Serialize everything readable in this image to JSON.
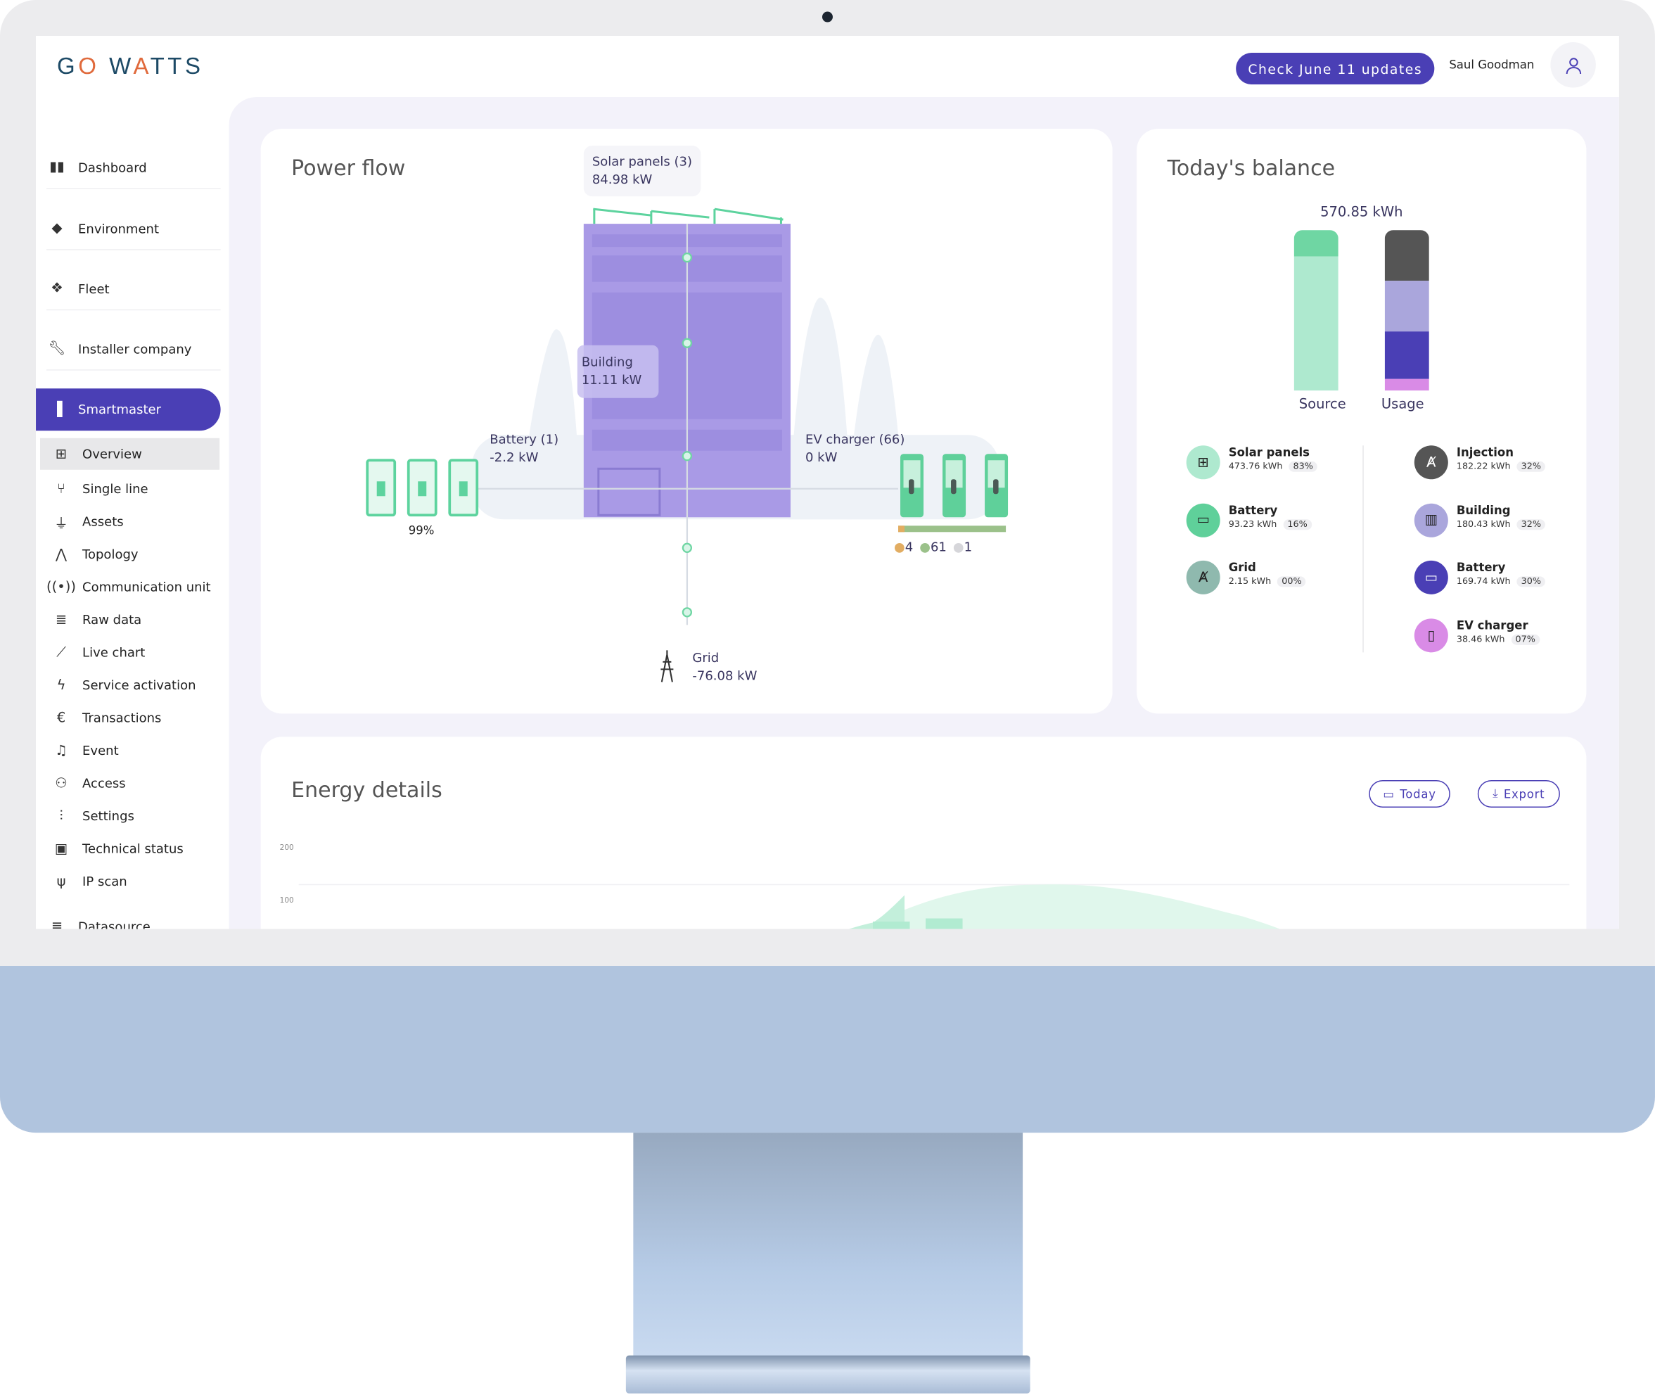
{
  "header": {
    "logo_text": "GO WATTS",
    "update_button": "Check June 11 updates",
    "user_name": "Saul Goodman"
  },
  "sidebar": {
    "items": [
      {
        "label": "Dashboard",
        "icon": "dashboard-icon"
      },
      {
        "label": "Environment",
        "icon": "diamond-icon"
      },
      {
        "label": "Fleet",
        "icon": "fleet-icon"
      },
      {
        "label": "Installer company",
        "icon": "wrench-icon"
      },
      {
        "label": "Smartmaster",
        "icon": "bar-chart-icon",
        "active": true
      }
    ],
    "subitems": [
      {
        "label": "Overview",
        "icon": "grid-icon",
        "active": true
      },
      {
        "label": "Single line",
        "icon": "single-line-icon"
      },
      {
        "label": "Assets",
        "icon": "plug-icon"
      },
      {
        "label": "Topology",
        "icon": "topology-icon"
      },
      {
        "label": "Communication unit",
        "icon": "broadcast-icon"
      },
      {
        "label": "Raw data",
        "icon": "database-icon"
      },
      {
        "label": "Live chart",
        "icon": "line-chart-icon"
      },
      {
        "label": "Service activation",
        "icon": "bolt-icon"
      },
      {
        "label": "Transactions",
        "icon": "euro-icon"
      },
      {
        "label": "Event",
        "icon": "bell-icon"
      },
      {
        "label": "Access",
        "icon": "users-icon"
      },
      {
        "label": "Settings",
        "icon": "sliders-icon"
      },
      {
        "label": "Technical status",
        "icon": "chip-icon"
      },
      {
        "label": "IP scan",
        "icon": "antenna-icon"
      }
    ],
    "bottom_item": {
      "label": "Datasource",
      "icon": "database-icon"
    }
  },
  "power_flow": {
    "title": "Power flow",
    "solar": {
      "label": "Solar panels (3)",
      "value": "84.98 kW"
    },
    "building": {
      "label": "Building",
      "value": "11.11 kW"
    },
    "battery": {
      "label": "Battery (1)",
      "value": "-2.2 kW",
      "soc": "99%"
    },
    "ev": {
      "label": "EV charger (66)",
      "value": "0 kW",
      "status_counts": [
        {
          "count": "4",
          "color": "#e2ad62"
        },
        {
          "count": "61",
          "color": "#9bc18a"
        },
        {
          "count": "1",
          "color": "#d6d6da"
        }
      ]
    },
    "grid": {
      "label": "Grid",
      "value": "-76.08 kW"
    }
  },
  "balance": {
    "title": "Today's balance",
    "total": "570.85 kWh",
    "source_label": "Source",
    "usage_label": "Usage",
    "source_segments": [
      {
        "name": "Solar panels",
        "percent": 83,
        "color": "#aee9cf"
      },
      {
        "name": "Battery",
        "percent": 16,
        "color": "#6fd6a3"
      }
    ],
    "usage_segments": [
      {
        "name": "Injection",
        "percent": 32,
        "color": "#555555"
      },
      {
        "name": "Building",
        "percent": 32,
        "color": "#aaa6dc"
      },
      {
        "name": "Battery",
        "percent": 30,
        "color": "#4a3fb5"
      },
      {
        "name": "EV charger",
        "percent": 7,
        "color": "#d98be6"
      }
    ],
    "source_items": [
      {
        "name": "Solar panels",
        "value": "473.76 kWh",
        "pct": "83%",
        "color": "#aee9cf",
        "icon": "solar-panel-icon"
      },
      {
        "name": "Battery",
        "value": "93.23 kWh",
        "pct": "16%",
        "color": "#5fd09a",
        "icon": "battery-icon"
      },
      {
        "name": "Grid",
        "value": "2.15 kWh",
        "pct": "00%",
        "color": "#8fb9ae",
        "icon": "grid-tower-icon"
      }
    ],
    "usage_items": [
      {
        "name": "Injection",
        "value": "182.22 kWh",
        "pct": "32%",
        "color": "#555555",
        "icon": "injection-tower-icon"
      },
      {
        "name": "Building",
        "value": "180.43 kWh",
        "pct": "32%",
        "color": "#aaa6dc",
        "icon": "factory-icon"
      },
      {
        "name": "Battery",
        "value": "169.74 kWh",
        "pct": "30%",
        "color": "#4a3fb5",
        "icon": "battery-icon"
      },
      {
        "name": "EV charger",
        "value": "38.46 kWh",
        "pct": "07%",
        "color": "#d98be6",
        "icon": "ev-charger-icon"
      }
    ]
  },
  "energy": {
    "title": "Energy details",
    "today_button": "Today",
    "export_button": "Export",
    "y_ticks": [
      "200",
      "100"
    ]
  },
  "colors": {
    "accent": "#4a3fb5",
    "green": "#5fd09a",
    "purple": "#a99ae6"
  }
}
